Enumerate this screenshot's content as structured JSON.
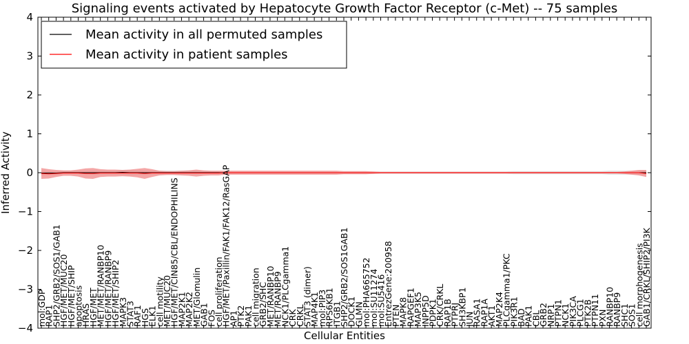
{
  "chart_data": {
    "type": "line",
    "title": "Signaling events activated by Hepatocyte Growth Factor Receptor (c-Met) -- 75 samples",
    "xlabel": "Cellular Entities",
    "ylabel": "Inferred Activity",
    "ylim": [
      -4,
      4
    ],
    "yticks": [
      4,
      3,
      2,
      1,
      0,
      -1,
      -2,
      -3,
      -4
    ],
    "ytick_labels": [
      "4",
      "3",
      "2",
      "1",
      "0",
      "−1",
      "−2",
      "−3",
      "−4"
    ],
    "grid": false,
    "legend_position": "top-left",
    "colors": {
      "permuted": "#000000",
      "patient": "#ff0000",
      "patient_band": "#f08080",
      "permuted_band": "#c8c8c8"
    },
    "categories": [
      "mol:GDP",
      "RAP1",
      "SHP2/GRB2/SOS1/GAB1",
      "HGF/MET/MUC20",
      "HGF/MET/SHIP",
      "apoptosis",
      "HRAS",
      "HGF/MET",
      "MET/MET/RANBP10",
      "HGF/MET/RANBP9",
      "HGF/MET/SHIP2",
      "MAPK3",
      "STAT3",
      "RAF1",
      "HGS",
      "ELK1",
      "cell motility",
      "MET/MUC20",
      "HGF/MET/CIN85/CBL/ENDOPHILINS",
      "MAP2K1",
      "MAP2K2",
      "MET/Glomulin",
      "GAB1",
      "FOS",
      "cell proliferation",
      "HGF/MET/Paxillin/FAK1/FAK12/RasGAP",
      "AP1",
      "PTK2",
      "PAK1",
      "cell migration",
      "GRB2/SHC",
      "MET/RANBP10",
      "MET/RANBP9",
      "NCK1/PLCgamma1",
      "CRK",
      "CRKL",
      "STAT3 (dimer)",
      "MAP4K1",
      "mol:PIP3",
      "RPS6KB1",
      "ITGB1",
      "SHP2/GRB2/SOS1GAB1",
      "DOCK1",
      "GLMN",
      "mol:PHA665752",
      "mol:SU11274",
      "mol:SU5416",
      "EntrezGene:200958",
      "PTEN",
      "MAPK8",
      "RAPGEF1",
      "MAP3K5",
      "INPP5D",
      "PDPK1",
      "CRK/CRKL",
      "RAP1B",
      "PTPRJ",
      "SH3KBP1",
      "JUN",
      "RASA1",
      "RAP1A",
      "AKT1",
      "MAP2K4",
      "PLCgamma1/PKC",
      "PIK3R1",
      "BAD",
      "PAK1",
      "CBL",
      "GRB2",
      "NRP1",
      "PTPN1",
      "NCK1",
      "PIK3CA",
      "PLCG1",
      "PTK2B",
      "PTPN11",
      "PXN",
      "RANBP10",
      "RANBP9",
      "SHC1",
      "SOS1",
      "cell morphogenesis",
      "GAB1/CRKL/SHIP2/PI3K"
    ],
    "series": [
      {
        "name": "Mean activity in all permuted samples",
        "color": "#000000",
        "values": [
          -0.01,
          -0.01,
          -0.01,
          0.0,
          0.0,
          0.0,
          0.0,
          0.0,
          0.0,
          0.0,
          0.0,
          0.01,
          0.0,
          0.0,
          0.0,
          0.0,
          0.0,
          0.0,
          0.0,
          0.0,
          0.0,
          0.0,
          0.0,
          0.0,
          0.0,
          0.0,
          0.0,
          0.0,
          0.0,
          0.0,
          0.0,
          0.0,
          0.0,
          0.0,
          0.0,
          0.0,
          0.0,
          0.0,
          0.0,
          0.0,
          0.0,
          0.0,
          0.0,
          0.0,
          0.0,
          0.0,
          0.0,
          0.0,
          0.0,
          0.0,
          0.0,
          0.0,
          0.0,
          0.0,
          0.0,
          0.0,
          0.0,
          0.0,
          0.0,
          0.0,
          0.0,
          0.0,
          0.0,
          0.0,
          0.0,
          0.0,
          0.0,
          0.0,
          0.0,
          0.0,
          0.0,
          0.0,
          0.0,
          0.0,
          0.0,
          0.0,
          0.0,
          0.0,
          0.0,
          0.0,
          0.0,
          0.0,
          0.0
        ],
        "spread": [
          0.06,
          0.05,
          0.05,
          0.04,
          0.04,
          0.04,
          0.04,
          0.05,
          0.05,
          0.05,
          0.05,
          0.06,
          0.07,
          0.06,
          0.05,
          0.05,
          0.05,
          0.05,
          0.05,
          0.05,
          0.05,
          0.05,
          0.04,
          0.04,
          0.04,
          0.04,
          0.03,
          0.03,
          0.03,
          0.03,
          0.03,
          0.03,
          0.03,
          0.03,
          0.03,
          0.03,
          0.03,
          0.03,
          0.03,
          0.03,
          0.03,
          0.03,
          0.03,
          0.03,
          0.03,
          0.03,
          0.03,
          0.03,
          0.03,
          0.03,
          0.03,
          0.03,
          0.03,
          0.03,
          0.03,
          0.03,
          0.03,
          0.03,
          0.03,
          0.03,
          0.03,
          0.03,
          0.03,
          0.03,
          0.04,
          0.04,
          0.04,
          0.04,
          0.04,
          0.04,
          0.04,
          0.04,
          0.04,
          0.04,
          0.04,
          0.04,
          0.04,
          0.05,
          0.05,
          0.05,
          0.05,
          0.05,
          0.05
        ]
      },
      {
        "name": "Mean activity in patient samples",
        "color": "#ff0000",
        "values": [
          -0.02,
          -0.03,
          -0.02,
          -0.01,
          -0.01,
          -0.01,
          -0.02,
          -0.02,
          -0.01,
          -0.01,
          -0.01,
          -0.01,
          -0.01,
          -0.01,
          -0.02,
          -0.01,
          -0.01,
          -0.01,
          -0.01,
          -0.01,
          -0.01,
          -0.01,
          -0.01,
          -0.01,
          -0.01,
          0.0,
          0.0,
          0.0,
          0.0,
          0.0,
          0.0,
          0.0,
          0.0,
          0.0,
          0.0,
          0.0,
          0.0,
          0.0,
          0.0,
          0.0,
          0.0,
          0.0,
          0.0,
          0.0,
          0.0,
          0.0,
          0.0,
          0.0,
          0.0,
          0.0,
          0.0,
          0.0,
          0.0,
          0.0,
          0.0,
          0.0,
          0.0,
          0.0,
          0.0,
          0.0,
          0.0,
          0.0,
          0.0,
          0.0,
          0.0,
          0.0,
          0.0,
          0.0,
          0.0,
          0.0,
          0.0,
          0.0,
          0.0,
          0.0,
          0.0,
          0.0,
          0.0,
          0.0,
          0.0,
          0.0,
          0.0,
          0.0,
          -0.02
        ],
        "spread": [
          0.14,
          0.12,
          0.09,
          0.07,
          0.07,
          0.09,
          0.13,
          0.14,
          0.1,
          0.09,
          0.09,
          0.08,
          0.09,
          0.11,
          0.14,
          0.1,
          0.06,
          0.05,
          0.05,
          0.06,
          0.07,
          0.09,
          0.07,
          0.06,
          0.06,
          0.05,
          0.05,
          0.05,
          0.05,
          0.05,
          0.05,
          0.05,
          0.05,
          0.05,
          0.05,
          0.05,
          0.05,
          0.05,
          0.05,
          0.05,
          0.05,
          0.04,
          0.04,
          0.04,
          0.04,
          0.03,
          0.02,
          0.02,
          0.02,
          0.02,
          0.02,
          0.02,
          0.02,
          0.02,
          0.02,
          0.02,
          0.02,
          0.02,
          0.02,
          0.02,
          0.02,
          0.02,
          0.02,
          0.02,
          0.02,
          0.02,
          0.02,
          0.02,
          0.02,
          0.02,
          0.02,
          0.02,
          0.02,
          0.02,
          0.02,
          0.02,
          0.02,
          0.02,
          0.02,
          0.03,
          0.05,
          0.07,
          0.09
        ]
      }
    ]
  }
}
